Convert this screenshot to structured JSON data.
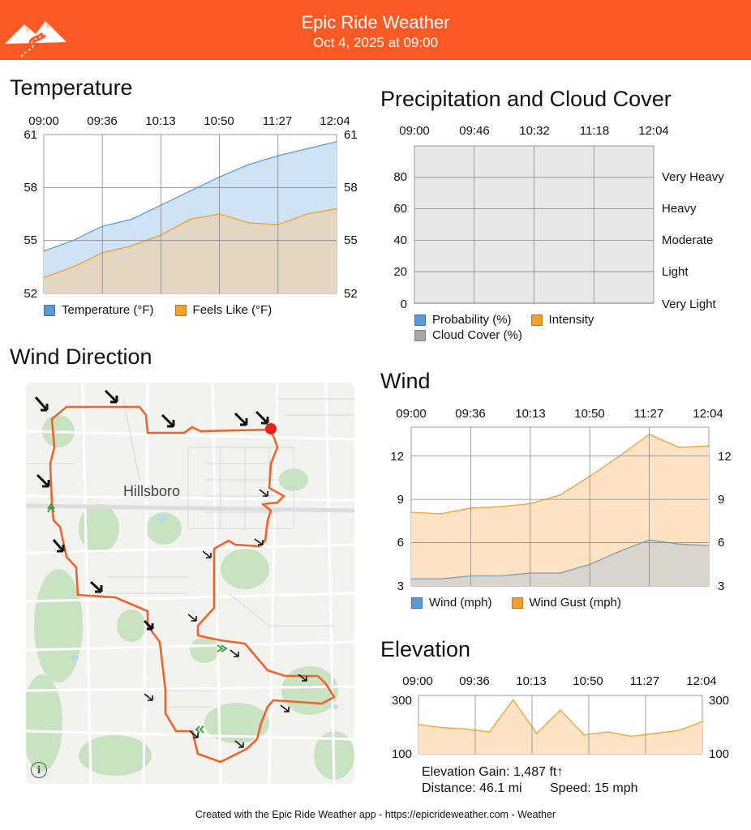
{
  "header": {
    "title": "Epic Ride Weather",
    "subtitle": "Oct 4, 2025 at 09:00",
    "color": "#fc5a24",
    "logo_icon": "mountain-road-logo"
  },
  "temperature": {
    "title": "Temperature",
    "times": [
      "09:00",
      "09:36",
      "10:13",
      "10:50",
      "11:27",
      "12:04"
    ],
    "y_ticks": [
      "61",
      "58",
      "55",
      "52"
    ],
    "legend": [
      "Temperature (°F)",
      "Feels Like (°F)"
    ],
    "colors": {
      "temp": "#5a9bd5",
      "feels": "#f0a030"
    }
  },
  "precipitation": {
    "title": "Precipitation and Cloud Cover",
    "times": [
      "09:00",
      "09:46",
      "10:32",
      "11:18",
      "12:04"
    ],
    "y_ticks": [
      "80",
      "60",
      "40",
      "20",
      "0"
    ],
    "intensity_labels": [
      "Very Heavy",
      "Heavy",
      "Moderate",
      "Light",
      "Very Light"
    ],
    "legend": [
      "Probability (%)",
      "Intensity",
      "Cloud Cover (%)"
    ]
  },
  "wind_direction": {
    "title": "Wind Direction",
    "map_label": "Hillsboro",
    "info_icon": "i"
  },
  "wind": {
    "title": "Wind",
    "times": [
      "09:00",
      "09:36",
      "10:13",
      "10:50",
      "11:27",
      "12:04"
    ],
    "y_ticks": [
      "12",
      "9",
      "6",
      "3"
    ],
    "legend": [
      "Wind (mph)",
      "Wind Gust (mph)"
    ]
  },
  "elevation": {
    "title": "Elevation",
    "times": [
      "09:00",
      "09:36",
      "10:13",
      "10:50",
      "11:27",
      "12:04"
    ],
    "y_ticks": [
      "300",
      "100"
    ],
    "gain": "Elevation Gain: 1,487 ft↑",
    "distance": "Distance: 46.1 mi",
    "speed": "Speed: 15 mph"
  },
  "footer": "Created with the Epic Ride Weather app - https://epicrideweather.com -  Weather",
  "chart_data": [
    {
      "type": "area",
      "title": "Temperature",
      "x": [
        "09:00",
        "09:18",
        "09:36",
        "09:55",
        "10:13",
        "10:31",
        "10:50",
        "11:08",
        "11:27",
        "11:45",
        "12:04"
      ],
      "ylim": [
        52,
        61
      ],
      "series": [
        {
          "name": "Temperature (°F)",
          "values": [
            54.4,
            55.0,
            55.8,
            56.2,
            57.0,
            57.8,
            58.6,
            59.3,
            59.8,
            60.2,
            60.6
          ]
        },
        {
          "name": "Feels Like (°F)",
          "values": [
            52.9,
            53.5,
            54.3,
            54.7,
            55.3,
            56.2,
            56.5,
            56.0,
            55.9,
            56.5,
            56.8
          ]
        }
      ]
    },
    {
      "type": "area",
      "title": "Precipitation and Cloud Cover",
      "x": [
        "09:00",
        "09:46",
        "10:32",
        "11:18",
        "12:04"
      ],
      "ylim": [
        0,
        100
      ],
      "series": [
        {
          "name": "Probability (%)",
          "values": [
            0,
            0,
            0,
            0,
            0
          ]
        },
        {
          "name": "Intensity",
          "values": [
            0,
            0,
            0,
            0,
            0
          ]
        },
        {
          "name": "Cloud Cover (%)",
          "values": [
            0,
            0,
            0,
            0,
            0
          ]
        }
      ]
    },
    {
      "type": "area",
      "title": "Wind",
      "x": [
        "09:00",
        "09:18",
        "09:36",
        "09:55",
        "10:13",
        "10:31",
        "10:50",
        "11:08",
        "11:27",
        "11:45",
        "12:04"
      ],
      "ylim": [
        3,
        14
      ],
      "series": [
        {
          "name": "Wind (mph)",
          "values": [
            3.5,
            3.5,
            3.7,
            3.7,
            3.9,
            3.9,
            4.5,
            5.4,
            6.2,
            5.9,
            5.8
          ]
        },
        {
          "name": "Wind Gust (mph)",
          "values": [
            8.1,
            8.0,
            8.4,
            8.5,
            8.7,
            9.3,
            10.6,
            12.0,
            13.5,
            12.6,
            12.7
          ]
        }
      ]
    },
    {
      "type": "area",
      "title": "Elevation",
      "x": [
        "09:00",
        "09:18",
        "09:36",
        "09:55",
        "10:05",
        "10:13",
        "10:20",
        "10:31",
        "10:50",
        "11:08",
        "11:27",
        "11:45",
        "12:04"
      ],
      "ylim": [
        100,
        300
      ],
      "series": [
        {
          "name": "Elevation",
          "values": [
            200,
            190,
            185,
            175,
            285,
            170,
            250,
            165,
            175,
            160,
            170,
            180,
            210
          ]
        }
      ]
    }
  ]
}
